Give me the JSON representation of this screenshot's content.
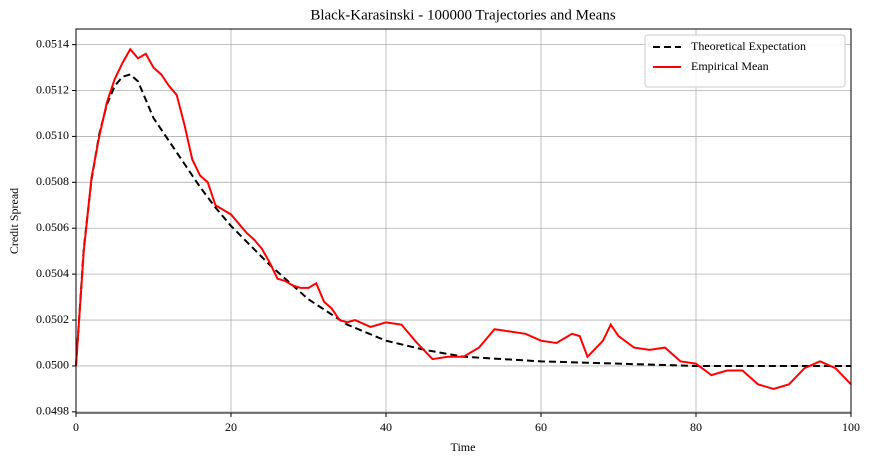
{
  "chart_data": {
    "type": "line",
    "title": "Black-Karasinski - 100000 Trajectories and Means",
    "x_label": "Time",
    "y_label": "Credit Spread",
    "xlim": [
      0,
      100
    ],
    "ylim": [
      0.049795,
      0.051468
    ],
    "xticks": [
      0,
      20,
      40,
      60,
      80,
      100
    ],
    "yticks": [
      0.0498,
      {
        "value": 0.05,
        "label": "0.0500"
      },
      0.0502,
      0.0504,
      0.0506,
      0.0508,
      {
        "value": 0.051,
        "label": "0.0510"
      },
      0.0512,
      0.0514
    ],
    "grid": true,
    "legend": "upper right",
    "series": [
      {
        "name": "Theoretical Expectation",
        "color": "#000000",
        "dash": "dashed",
        "x": [
          0,
          1,
          2,
          3,
          4,
          5,
          6,
          7,
          8,
          10,
          12,
          14,
          16,
          18,
          20,
          25,
          30,
          35,
          40,
          45,
          50,
          60,
          70,
          80,
          90,
          100
        ],
        "values": [
          0.05,
          0.05051,
          0.05081,
          0.05101,
          0.05114,
          0.05122,
          0.05126,
          0.05127,
          0.05124,
          0.05108,
          0.05098,
          0.05088,
          0.05078,
          0.05069,
          0.05061,
          0.05044,
          0.05029,
          0.05018,
          0.05011,
          0.05007,
          0.05004,
          0.05002,
          0.05001,
          0.05,
          0.05,
          0.05
        ]
      },
      {
        "name": "Empirical Mean",
        "color": "#ff0000",
        "dash": "solid",
        "x": [
          0,
          1,
          2,
          3,
          4,
          5,
          6,
          7,
          8,
          9,
          10,
          11,
          12,
          13,
          14,
          15,
          16,
          17,
          18,
          19,
          20,
          21,
          22,
          23,
          24,
          25,
          26,
          27,
          28,
          29,
          30,
          31,
          32,
          33,
          34,
          35,
          36,
          38,
          40,
          42,
          44,
          46,
          48,
          50,
          52,
          54,
          56,
          58,
          60,
          62,
          64,
          65,
          66,
          68,
          69,
          70,
          72,
          74,
          76,
          78,
          80,
          82,
          84,
          86,
          88,
          90,
          92,
          94,
          96,
          98,
          100
        ],
        "values": [
          0.05,
          0.0505,
          0.05082,
          0.051,
          0.05115,
          0.05125,
          0.05132,
          0.05138,
          0.05134,
          0.05136,
          0.0513,
          0.05127,
          0.05122,
          0.05118,
          0.05105,
          0.0509,
          0.05083,
          0.0508,
          0.0507,
          0.05068,
          0.05066,
          0.05062,
          0.05058,
          0.05055,
          0.05051,
          0.05045,
          0.05038,
          0.05037,
          0.05035,
          0.05034,
          0.05034,
          0.05036,
          0.05028,
          0.05025,
          0.0502,
          0.05019,
          0.0502,
          0.05017,
          0.05019,
          0.05018,
          0.0501,
          0.05003,
          0.05004,
          0.05004,
          0.05008,
          0.05016,
          0.05015,
          0.05014,
          0.05011,
          0.0501,
          0.05014,
          0.05013,
          0.05004,
          0.05011,
          0.05018,
          0.05013,
          0.05008,
          0.05007,
          0.05008,
          0.05002,
          0.05001,
          0.04996,
          0.04998,
          0.04998,
          0.04992,
          0.0499,
          0.04992,
          0.04999,
          0.05002,
          0.04999,
          0.04992
        ]
      }
    ]
  }
}
